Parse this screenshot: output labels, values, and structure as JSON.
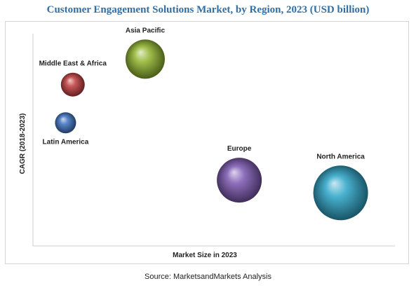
{
  "title": "Customer Engagement Solutions Market, by Region, 2023 (USD billion)",
  "source": "Source: MarketsandMarkets Analysis",
  "chart_data": {
    "type": "scatter",
    "variant": "bubble",
    "title": "Customer Engagement Solutions Market, by Region, 2023 (USD billion)",
    "xlabel": "Market Size in 2023",
    "ylabel": "CAGR (2018-2023)",
    "xlim": [
      0,
      100
    ],
    "ylim": [
      0,
      100
    ],
    "grid": false,
    "legend": "none",
    "points": [
      {
        "label": "Asia Pacific",
        "x": 31,
        "y": 88,
        "size": 28,
        "color": "#8fb42a"
      },
      {
        "label": "Middle East & Africa",
        "x": 11,
        "y": 76,
        "size": 17,
        "color": "#c0393b"
      },
      {
        "label": "Latin America",
        "x": 9,
        "y": 58,
        "size": 15,
        "color": "#3a6fbf"
      },
      {
        "label": "Europe",
        "x": 57,
        "y": 31,
        "size": 32,
        "color": "#7a55b0"
      },
      {
        "label": "North America",
        "x": 85,
        "y": 25,
        "size": 39,
        "color": "#29a3c6"
      }
    ]
  }
}
